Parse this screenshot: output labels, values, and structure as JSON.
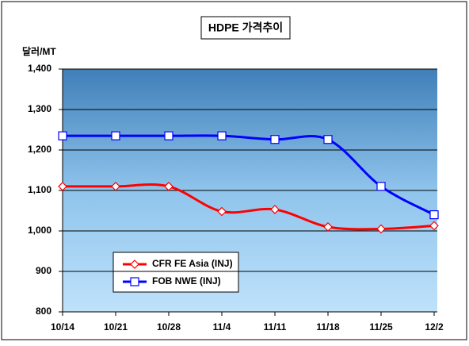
{
  "chart_data": {
    "type": "line",
    "title": "HDPE 가격추이",
    "y_label": "달러/MT",
    "categories": [
      "10/14",
      "10/21",
      "10/28",
      "11/4",
      "11/11",
      "11/18",
      "11/25",
      "12/2"
    ],
    "series": [
      {
        "name": "CFR FE Asia (INJ)",
        "color": "#ff0000",
        "marker": "diamond",
        "values": [
          1110,
          1110,
          1110,
          1048,
          1053,
          1010,
          1005,
          1013
        ]
      },
      {
        "name": "FOB NWE (INJ)",
        "color": "#0000ff",
        "marker": "square",
        "values": [
          1235,
          1235,
          1235,
          1235,
          1226,
          1226,
          1110,
          1040
        ]
      }
    ],
    "ylim": [
      800,
      1400
    ],
    "yticks": [
      800,
      900,
      {
        "value": 1000,
        "label": "1,000"
      },
      {
        "value": 1100,
        "label": "1,100"
      },
      {
        "value": 1200,
        "label": "1,200"
      },
      {
        "value": 1300,
        "label": "1,300"
      },
      {
        "value": 1400,
        "label": "1,400"
      }
    ],
    "grid": true
  }
}
